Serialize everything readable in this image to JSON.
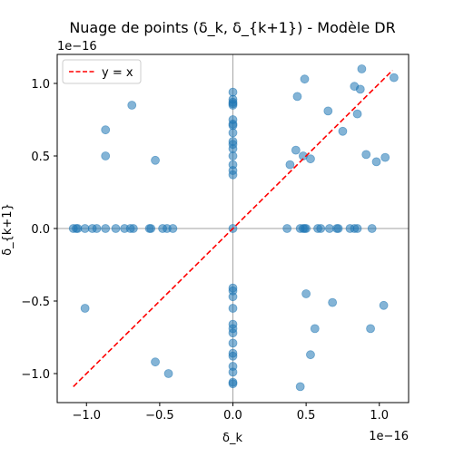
{
  "chart_data": {
    "type": "scatter",
    "title": "Nuage de points (δ_k, δ_{k+1}) - Modèle DR",
    "xlabel": "δ_k",
    "ylabel": "δ_{k+1}",
    "x_offset_label": "1e−16",
    "y_offset_label": "1e−16",
    "xlim": [
      -1.2,
      1.2
    ],
    "ylim": [
      -1.2,
      1.2
    ],
    "xticks": [
      -1.0,
      -0.5,
      0.0,
      0.5,
      1.0
    ],
    "yticks": [
      -1.0,
      -0.5,
      0.0,
      0.5,
      1.0
    ],
    "xtick_labels": [
      "−1.0",
      "−0.5",
      "0.0",
      "0.5",
      "1.0"
    ],
    "ytick_labels": [
      "−1.0",
      "−0.5",
      "0.0",
      "0.5",
      "1.0"
    ],
    "unit_scale": "1e-16",
    "point_color": "#1f77b4",
    "reference_line": {
      "label": "y = x",
      "color": "#ff0000",
      "style": "dashed",
      "x_range": [
        -1.09,
        1.09
      ]
    },
    "legend": {
      "position": "top-left",
      "entries": [
        "y = x"
      ]
    },
    "series": [
      {
        "points": [
          [
            -1.09,
            0
          ],
          [
            -1.07,
            0
          ],
          [
            -1.06,
            0
          ],
          [
            -1.01,
            0
          ],
          [
            -0.96,
            0
          ],
          [
            -0.93,
            0
          ],
          [
            -0.87,
            0
          ],
          [
            -0.8,
            0
          ],
          [
            -0.74,
            0
          ],
          [
            -0.7,
            0
          ],
          [
            -0.68,
            0
          ],
          [
            -0.57,
            0
          ],
          [
            -0.56,
            0
          ],
          [
            -0.48,
            0
          ],
          [
            -0.45,
            0
          ],
          [
            -0.41,
            0
          ],
          [
            0.37,
            0
          ],
          [
            0.46,
            0
          ],
          [
            0.48,
            0
          ],
          [
            0.49,
            0
          ],
          [
            0.5,
            0
          ],
          [
            0.58,
            0
          ],
          [
            0.6,
            0
          ],
          [
            0.66,
            0
          ],
          [
            0.71,
            0
          ],
          [
            0.72,
            0
          ],
          [
            0.8,
            0
          ],
          [
            0.83,
            0
          ],
          [
            0.85,
            0
          ],
          [
            0.95,
            0
          ],
          [
            0,
            0.94
          ],
          [
            0,
            0.89
          ],
          [
            0,
            0.87
          ],
          [
            0,
            0.86
          ],
          [
            0,
            0.85
          ],
          [
            0,
            0.75
          ],
          [
            0,
            0.72
          ],
          [
            0,
            0.71
          ],
          [
            0,
            0.66
          ],
          [
            0,
            0.6
          ],
          [
            0,
            0.58
          ],
          [
            0,
            0.55
          ],
          [
            0,
            0.5
          ],
          [
            0,
            0.44
          ],
          [
            0,
            0.4
          ],
          [
            0,
            0.37
          ],
          [
            0,
            -0.41
          ],
          [
            0,
            -0.43
          ],
          [
            0,
            -0.47
          ],
          [
            0,
            -0.55
          ],
          [
            0,
            -0.66
          ],
          [
            0,
            -0.69
          ],
          [
            0,
            -0.72
          ],
          [
            0,
            -0.79
          ],
          [
            0,
            -0.86
          ],
          [
            0,
            -0.88
          ],
          [
            0,
            -0.95
          ],
          [
            0,
            -0.99
          ],
          [
            0,
            -1.06
          ],
          [
            0,
            -1.07
          ],
          [
            0,
            0
          ],
          [
            -0.87,
            0.68
          ],
          [
            -0.87,
            0.5
          ],
          [
            -0.69,
            0.85
          ],
          [
            -0.53,
            0.47
          ],
          [
            -1.01,
            -0.55
          ],
          [
            -0.53,
            -0.92
          ],
          [
            -0.44,
            -1.0
          ],
          [
            0.44,
            0.91
          ],
          [
            0.49,
            1.03
          ],
          [
            0.48,
            0.5
          ],
          [
            0.43,
            0.54
          ],
          [
            0.39,
            0.44
          ],
          [
            0.53,
            0.48
          ],
          [
            0.65,
            0.81
          ],
          [
            0.75,
            0.67
          ],
          [
            0.83,
            0.98
          ],
          [
            0.85,
            0.79
          ],
          [
            0.87,
            0.96
          ],
          [
            0.88,
            1.1
          ],
          [
            0.91,
            0.51
          ],
          [
            0.98,
            0.46
          ],
          [
            1.04,
            0.49
          ],
          [
            1.1,
            1.04
          ],
          [
            0.5,
            -0.45
          ],
          [
            0.56,
            -0.69
          ],
          [
            0.53,
            -0.87
          ],
          [
            0.46,
            -1.09
          ],
          [
            0.68,
            -0.51
          ],
          [
            0.94,
            -0.69
          ],
          [
            1.03,
            -0.53
          ]
        ]
      }
    ]
  }
}
